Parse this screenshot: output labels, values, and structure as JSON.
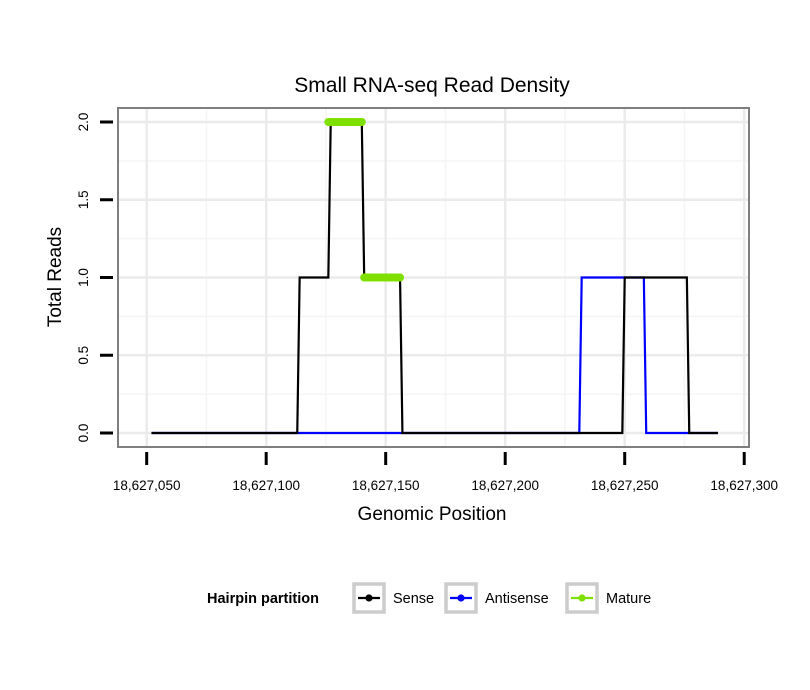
{
  "chart_data": {
    "type": "line",
    "title": "Small RNA-seq Read Density",
    "xlabel": "Genomic Position",
    "ylabel": "Total Reads",
    "xlim": [
      18627038,
      18627302
    ],
    "ylim": [
      -0.09,
      2.09
    ],
    "xticks": [
      18627050,
      18627100,
      18627150,
      18627200,
      18627250,
      18627300
    ],
    "xtick_labels": [
      "18,627,050",
      "18,627,100",
      "18,627,150",
      "18,627,200",
      "18,627,250",
      "18,627,300"
    ],
    "yticks": [
      0,
      0.5,
      1,
      1.5,
      2
    ],
    "ytick_labels": [
      "0.0",
      "0.5",
      "1.0",
      "1.5",
      "2.0"
    ],
    "grid": true,
    "series": [
      {
        "name": "Antisense",
        "color": "#0000ff",
        "points": [
          [
            18627052,
            0
          ],
          [
            18627231,
            0
          ],
          [
            18627232,
            1
          ],
          [
            18627258,
            1
          ],
          [
            18627259,
            0
          ],
          [
            18627289,
            0
          ]
        ]
      },
      {
        "name": "Sense",
        "color": "#000000",
        "points": [
          [
            18627052,
            0
          ],
          [
            18627113,
            0
          ],
          [
            18627114,
            1
          ],
          [
            18627126,
            1
          ],
          [
            18627127,
            2
          ],
          [
            18627140,
            2
          ],
          [
            18627141,
            1
          ],
          [
            18627156,
            1
          ],
          [
            18627157,
            0
          ],
          [
            18627249,
            0
          ],
          [
            18627250,
            1
          ],
          [
            18627276,
            1
          ],
          [
            18627277,
            0
          ],
          [
            18627289,
            0
          ]
        ]
      },
      {
        "name": "Mature",
        "color": "#7fe000",
        "segments": [
          [
            [
              18627126,
              2
            ],
            [
              18627140,
              2
            ]
          ],
          [
            [
              18627141,
              1
            ],
            [
              18627156,
              1
            ]
          ]
        ]
      }
    ],
    "legend": {
      "title": "Hairpin partition",
      "position": "bottom",
      "entries": [
        {
          "label": "Sense",
          "color": "#000000"
        },
        {
          "label": "Antisense",
          "color": "#0000ff"
        },
        {
          "label": "Mature",
          "color": "#7fe000"
        }
      ]
    }
  }
}
